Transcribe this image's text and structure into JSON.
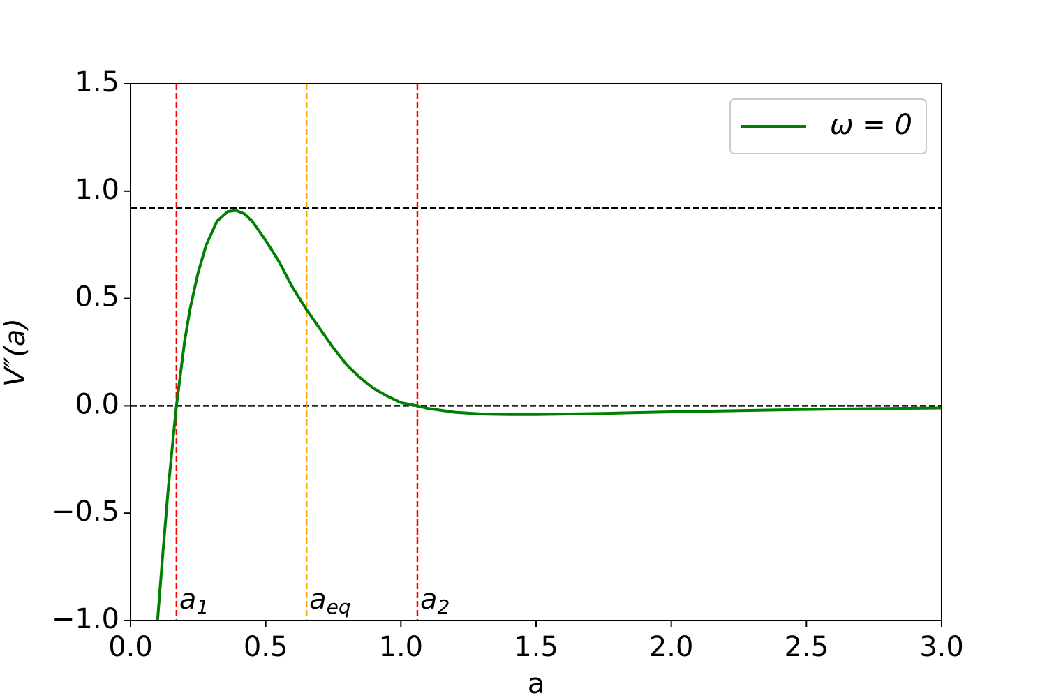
{
  "chart_data": {
    "type": "line",
    "xlabel": "a",
    "ylabel": "V″(a)",
    "x": [
      0.1,
      0.12,
      0.14,
      0.16,
      0.17,
      0.18,
      0.2,
      0.22,
      0.25,
      0.28,
      0.32,
      0.36,
      0.39,
      0.42,
      0.45,
      0.5,
      0.55,
      0.6,
      0.65,
      0.7,
      0.75,
      0.8,
      0.85,
      0.9,
      0.95,
      1.0,
      1.06,
      1.1,
      1.2,
      1.3,
      1.4,
      1.5,
      1.75,
      2.0,
      2.25,
      2.5,
      2.75,
      3.0
    ],
    "series": [
      {
        "name": "ω = 0",
        "color": "#008000",
        "values": [
          -1.0,
          -0.68,
          -0.38,
          -0.12,
          0.0,
          0.1,
          0.3,
          0.45,
          0.62,
          0.75,
          0.86,
          0.905,
          0.91,
          0.895,
          0.86,
          0.77,
          0.67,
          0.55,
          0.45,
          0.36,
          0.27,
          0.19,
          0.13,
          0.08,
          0.045,
          0.015,
          0.0,
          -0.012,
          -0.03,
          -0.038,
          -0.04,
          -0.04,
          -0.035,
          -0.028,
          -0.022,
          -0.017,
          -0.013,
          -0.01
        ]
      }
    ],
    "xlim": [
      0,
      3.0
    ],
    "ylim": [
      -1.0,
      1.5
    ],
    "xticks": [
      {
        "value": 0,
        "label": "0.0"
      },
      {
        "value": 0.5,
        "label": "0.5"
      },
      {
        "value": 1,
        "label": "1.0"
      },
      {
        "value": 1.5,
        "label": "1.5"
      },
      {
        "value": 2,
        "label": "2.0"
      },
      {
        "value": 2.5,
        "label": "2.5"
      },
      {
        "value": 3,
        "label": "3.0"
      }
    ],
    "yticks": [
      {
        "value": -1,
        "label": "−1.0"
      },
      {
        "value": -0.5,
        "label": "−0.5"
      },
      {
        "value": 0,
        "label": "0.0"
      },
      {
        "value": 0.5,
        "label": "0.5"
      },
      {
        "value": 1,
        "label": "1.0"
      },
      {
        "value": 1.5,
        "label": "1.5"
      }
    ],
    "hlines": [
      {
        "y": 0.921,
        "color": "#000000"
      },
      {
        "y": 0,
        "color": "#000000"
      }
    ],
    "vlines": [
      {
        "x": 0.17,
        "color": "#ff0000",
        "label": "a",
        "sub": "1"
      },
      {
        "x": 0.651,
        "color": "#ffa500",
        "label": "a",
        "sub": "eq"
      },
      {
        "x": 1.061,
        "color": "#ff0000",
        "label": "a",
        "sub": "2"
      }
    ],
    "legend": "upper right",
    "grid": false
  }
}
